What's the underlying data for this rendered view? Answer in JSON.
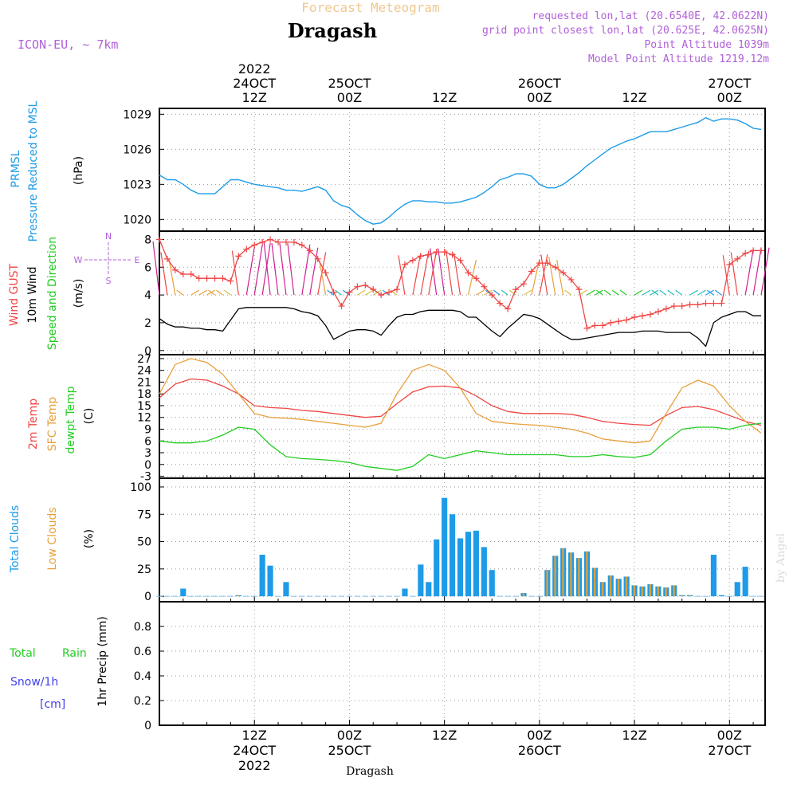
{
  "header": {
    "subtitle": "Forecast Meteogram",
    "title": "Dragash",
    "model": "ICON-EU,  ~ 7km",
    "requested": "requested lon,lat (20.6540E, 42.0622N)",
    "grid_point": "grid point closest lon,lat (20.625E, 42.0625N)",
    "point_altitude": "Point Altitude 1039m",
    "model_altitude": "Model Point Altitude 1219.12m"
  },
  "footer": {
    "location": "Dragash",
    "credit": "by Angel"
  },
  "time_axis": {
    "top": [
      {
        "line1": "2022",
        "line2": "24OCT",
        "line3": "12Z",
        "t": 12
      },
      {
        "line1": "",
        "line2": "25OCT",
        "line3": "00Z",
        "t": 24
      },
      {
        "line1": "",
        "line2": "",
        "line3": "12Z",
        "t": 36
      },
      {
        "line1": "",
        "line2": "26OCT",
        "line3": "00Z",
        "t": 48
      },
      {
        "line1": "",
        "line2": "",
        "line3": "12Z",
        "t": 60
      },
      {
        "line1": "",
        "line2": "27OCT",
        "line3": "00Z",
        "t": 72
      }
    ],
    "bottom": [
      {
        "line1": "12Z",
        "line2": "24OCT",
        "line3": "2022",
        "t": 12
      },
      {
        "line1": "00Z",
        "line2": "25OCT",
        "line3": "",
        "t": 24
      },
      {
        "line1": "12Z",
        "line2": "",
        "line3": "",
        "t": 36
      },
      {
        "line1": "00Z",
        "line2": "26OCT",
        "line3": "",
        "t": 48
      },
      {
        "line1": "12Z",
        "line2": "",
        "line3": "",
        "t": 60
      },
      {
        "line1": "00Z",
        "line2": "27OCT",
        "line3": "",
        "t": 72
      }
    ]
  },
  "panel_labels": {
    "pressure": {
      "name1": "PRMSL",
      "name2": "Pressure Reduced to MSL",
      "unit": "(hPa)"
    },
    "wind": {
      "gust": "Wind GUST",
      "wind10": "10m Wind",
      "dir": "Speed and Direction",
      "unit": "(m/s)",
      "compass_n": "N",
      "compass_s": "S",
      "compass_w": "W",
      "compass_e": "E"
    },
    "temp": {
      "t2m": "2m Temp",
      "sfc": "SFC Temp",
      "dew": "dewpt Temp",
      "unit": "(C)"
    },
    "clouds": {
      "total": "Total Clouds",
      "low": "Low Clouds",
      "unit": "(%)"
    },
    "precip": {
      "total": "Total",
      "rain": "Rain",
      "snow": "Snow/1h",
      "cm": "[cm]",
      "axis": "1hr Precip (mm)"
    }
  },
  "colors": {
    "pressure": "#1e9be8",
    "gust": "#f04545",
    "wind10": "#000000",
    "t2m": "#f04545",
    "sfc": "#e8a03c",
    "dew": "#22cc22",
    "total_cloud": "#1e9be8",
    "low_cloud": "#d4a040",
    "rain": "#22cc22",
    "snow": "#4040ee",
    "header_purple": "#b060d8"
  },
  "chart_data": [
    {
      "type": "line",
      "name": "pressure",
      "title": "PRMSL Pressure Reduced to MSL",
      "ylabel": "(hPa)",
      "ylim": [
        1019,
        1029.5
      ],
      "yticks": [
        1020,
        1023,
        1026,
        1029
      ],
      "x_hours": [
        0,
        1,
        2,
        3,
        4,
        5,
        6,
        7,
        8,
        9,
        10,
        11,
        12,
        13,
        14,
        15,
        16,
        17,
        18,
        19,
        20,
        21,
        22,
        23,
        24,
        25,
        26,
        27,
        28,
        29,
        30,
        31,
        32,
        33,
        34,
        35,
        36,
        37,
        38,
        39,
        40,
        41,
        42,
        43,
        44,
        45,
        46,
        47,
        48,
        49,
        50,
        51,
        52,
        53,
        54,
        55,
        56,
        57,
        58,
        59,
        60,
        61,
        62,
        63,
        64,
        65,
        66,
        67,
        68,
        69,
        70,
        71,
        72,
        73,
        74,
        75,
        76
      ],
      "series": [
        {
          "name": "PRMSL",
          "values": [
            1023.8,
            1023.4,
            1023.4,
            1023.0,
            1022.5,
            1022.2,
            1022.2,
            1022.2,
            1022.8,
            1023.4,
            1023.4,
            1023.2,
            1023.0,
            1022.9,
            1022.8,
            1022.7,
            1022.5,
            1022.5,
            1022.4,
            1022.6,
            1022.8,
            1022.5,
            1021.6,
            1021.2,
            1021.0,
            1020.4,
            1019.9,
            1019.6,
            1019.7,
            1020.2,
            1020.8,
            1021.3,
            1021.6,
            1021.6,
            1021.5,
            1021.5,
            1021.4,
            1021.4,
            1021.5,
            1021.7,
            1021.9,
            1022.3,
            1022.8,
            1023.4,
            1023.6,
            1023.9,
            1023.9,
            1023.7,
            1023.0,
            1022.7,
            1022.7,
            1023.0,
            1023.5,
            1024.0,
            1024.6,
            1025.1,
            1025.6,
            1026.1,
            1026.4,
            1026.7,
            1026.9,
            1027.2,
            1027.5,
            1027.5,
            1027.5,
            1027.7,
            1027.9,
            1028.1,
            1028.3,
            1028.7,
            1028.4,
            1028.6,
            1028.6,
            1028.5,
            1028.2,
            1027.8,
            1027.7
          ]
        }
      ]
    },
    {
      "type": "line",
      "name": "wind",
      "title": "Wind GUST / 10m Wind Speed and Direction",
      "ylabel": "(m/s)",
      "ylim": [
        -0.3,
        8.6
      ],
      "yticks": [
        0,
        2,
        4,
        6,
        8
      ],
      "x_hours": [
        0,
        1,
        2,
        3,
        4,
        5,
        6,
        7,
        8,
        9,
        10,
        11,
        12,
        13,
        14,
        15,
        16,
        17,
        18,
        19,
        20,
        21,
        22,
        23,
        24,
        25,
        26,
        27,
        28,
        29,
        30,
        31,
        32,
        33,
        34,
        35,
        36,
        37,
        38,
        39,
        40,
        41,
        42,
        43,
        44,
        45,
        46,
        47,
        48,
        49,
        50,
        51,
        52,
        53,
        54,
        55,
        56,
        57,
        58,
        59,
        60,
        61,
        62,
        63,
        64,
        65,
        66,
        67,
        68,
        69,
        70,
        71,
        72,
        73,
        74,
        75,
        76
      ],
      "series": [
        {
          "name": "Wind GUST",
          "values": [
            8.0,
            6.6,
            5.8,
            5.5,
            5.5,
            5.2,
            5.2,
            5.2,
            5.2,
            5.0,
            6.8,
            7.3,
            7.6,
            7.8,
            8.0,
            7.8,
            7.8,
            7.8,
            7.6,
            7.2,
            6.6,
            5.6,
            4.2,
            3.2,
            4.2,
            4.6,
            4.7,
            4.4,
            4.0,
            4.2,
            4.4,
            6.2,
            6.5,
            6.8,
            6.9,
            7.1,
            7.1,
            6.9,
            6.5,
            5.6,
            5.2,
            4.6,
            4.0,
            3.4,
            3.0,
            4.4,
            4.8,
            5.7,
            6.3,
            6.3,
            6.0,
            5.6,
            5.1,
            4.4,
            1.6,
            1.8,
            1.8,
            2.0,
            2.1,
            2.2,
            2.4,
            2.5,
            2.6,
            2.8,
            3.0,
            3.2,
            3.2,
            3.3,
            3.3,
            3.4,
            3.4,
            3.4,
            6.2,
            6.6,
            7.0,
            7.2,
            7.2
          ]
        },
        {
          "name": "10m Wind",
          "values": [
            2.3,
            1.9,
            1.7,
            1.7,
            1.6,
            1.6,
            1.5,
            1.5,
            1.4,
            2.2,
            3.0,
            3.1,
            3.1,
            3.1,
            3.1,
            3.1,
            3.1,
            3.0,
            2.8,
            2.7,
            2.5,
            1.8,
            0.8,
            1.1,
            1.4,
            1.5,
            1.5,
            1.4,
            1.1,
            1.8,
            2.4,
            2.6,
            2.6,
            2.8,
            2.9,
            2.9,
            2.9,
            2.9,
            2.8,
            2.4,
            2.4,
            1.9,
            1.4,
            1.0,
            1.6,
            2.1,
            2.6,
            2.5,
            2.3,
            1.9,
            1.5,
            1.1,
            0.8,
            0.8,
            0.9,
            1.0,
            1.1,
            1.2,
            1.3,
            1.3,
            1.3,
            1.4,
            1.4,
            1.4,
            1.3,
            1.3,
            1.3,
            1.3,
            0.9,
            0.3,
            2.0,
            2.4,
            2.6,
            2.8,
            2.8,
            2.5,
            2.5
          ]
        }
      ]
    },
    {
      "type": "line",
      "name": "temperature",
      "title": "2m Temp / SFC Temp / dewpt Temp",
      "ylabel": "(C)",
      "ylim": [
        -3.5,
        28
      ],
      "yticks": [
        -3,
        0,
        3,
        6,
        9,
        12,
        15,
        18,
        21,
        24,
        27
      ],
      "x_hours": [
        0,
        2,
        4,
        6,
        8,
        10,
        12,
        14,
        16,
        18,
        20,
        22,
        24,
        26,
        28,
        30,
        32,
        34,
        36,
        38,
        40,
        42,
        44,
        46,
        48,
        50,
        52,
        54,
        56,
        58,
        60,
        62,
        64,
        66,
        68,
        70,
        72,
        74,
        76
      ],
      "series": [
        {
          "name": "2m Temp",
          "values": [
            17.0,
            20.5,
            21.8,
            21.5,
            20.0,
            18.0,
            15.0,
            14.5,
            14.3,
            13.8,
            13.5,
            13.0,
            12.5,
            12.0,
            12.3,
            15.5,
            18.5,
            19.8,
            20.0,
            19.5,
            17.5,
            15.0,
            13.5,
            13.0,
            13.0,
            13.0,
            12.8,
            12.0,
            11.0,
            10.5,
            10.2,
            10.0,
            12.5,
            14.5,
            14.8,
            14.0,
            12.5,
            11.0,
            10.0
          ]
        },
        {
          "name": "SFC Temp",
          "values": [
            18.0,
            25.5,
            27.0,
            26.0,
            23.0,
            18.0,
            13.0,
            12.0,
            11.8,
            11.5,
            11.0,
            10.5,
            10.0,
            9.5,
            10.5,
            18.0,
            24.0,
            25.5,
            24.0,
            19.5,
            13.0,
            11.0,
            10.5,
            10.2,
            10.0,
            9.5,
            9.0,
            8.0,
            6.5,
            6.0,
            5.5,
            6.0,
            13.0,
            19.5,
            21.5,
            20.0,
            15.0,
            11.0,
            8.0
          ]
        },
        {
          "name": "dewpt Temp",
          "values": [
            6.0,
            5.5,
            5.5,
            6.0,
            7.5,
            9.5,
            9.0,
            5.0,
            2.0,
            1.5,
            1.3,
            1.0,
            0.5,
            -0.5,
            -1.0,
            -1.5,
            -0.5,
            2.5,
            1.5,
            2.5,
            3.5,
            3.0,
            2.5,
            2.5,
            2.5,
            2.5,
            2.0,
            2.0,
            2.5,
            2.0,
            1.8,
            2.5,
            6.0,
            9.0,
            9.5,
            9.5,
            9.0,
            10.0,
            10.5
          ]
        }
      ]
    },
    {
      "type": "bar",
      "name": "clouds",
      "title": "Total Clouds / Low Clouds",
      "ylabel": "(%)",
      "ylim": [
        -5,
        108
      ],
      "yticks": [
        0,
        25,
        50,
        75,
        100
      ],
      "x_hours": [
        0,
        1,
        2,
        3,
        4,
        5,
        6,
        7,
        8,
        9,
        10,
        11,
        12,
        13,
        14,
        15,
        16,
        17,
        18,
        19,
        20,
        21,
        22,
        23,
        24,
        25,
        26,
        27,
        28,
        29,
        30,
        31,
        32,
        33,
        34,
        35,
        36,
        37,
        38,
        39,
        40,
        41,
        42,
        43,
        44,
        45,
        46,
        47,
        48,
        49,
        50,
        51,
        52,
        53,
        54,
        55,
        56,
        57,
        58,
        59,
        60,
        61,
        62,
        63,
        64,
        65,
        66,
        67,
        68,
        69,
        70,
        71,
        72,
        73,
        74,
        75,
        76
      ],
      "series": [
        {
          "name": "Total Clouds",
          "values": [
            0,
            0,
            0,
            7,
            0,
            0,
            0,
            0,
            0,
            0,
            1,
            0,
            0,
            38,
            28,
            0,
            13,
            0,
            0,
            0,
            0,
            0,
            0,
            0,
            0,
            0,
            0,
            0,
            0,
            0,
            0,
            7,
            0,
            29,
            13,
            52,
            90,
            75,
            53,
            59,
            60,
            45,
            24,
            0,
            0,
            0,
            3,
            0,
            0,
            24,
            37,
            44,
            40,
            35,
            41,
            26,
            13,
            19,
            16,
            18,
            10,
            9,
            11,
            9,
            8,
            10,
            1,
            1,
            0,
            0,
            38,
            1,
            0,
            13,
            27,
            0,
            0
          ]
        },
        {
          "name": "Low Clouds",
          "values": [
            0,
            0,
            0,
            0,
            0,
            0,
            0,
            0,
            0,
            0,
            1,
            0,
            0,
            0,
            0,
            0,
            0,
            0,
            0,
            0,
            0,
            0,
            0,
            0,
            0,
            0,
            0,
            0,
            0,
            0,
            0,
            0,
            0,
            0,
            0,
            0,
            0,
            0,
            0,
            0,
            0,
            0,
            0,
            0,
            0,
            0,
            3,
            0,
            0,
            24,
            37,
            44,
            40,
            35,
            41,
            26,
            13,
            19,
            16,
            18,
            10,
            9,
            11,
            9,
            8,
            10,
            1,
            1,
            0,
            0,
            0,
            0,
            0,
            0,
            0,
            0,
            0
          ]
        }
      ]
    },
    {
      "type": "bar",
      "name": "precipitation",
      "title": "1hr Precip (mm)",
      "ylabel": "1hr Precip (mm)",
      "ylim": [
        0,
        1.0
      ],
      "yticks": [
        0,
        0.2,
        0.4,
        0.6,
        0.8
      ],
      "series": [
        {
          "name": "Total Rain",
          "values": []
        },
        {
          "name": "Snow/1h",
          "values": []
        }
      ]
    }
  ]
}
